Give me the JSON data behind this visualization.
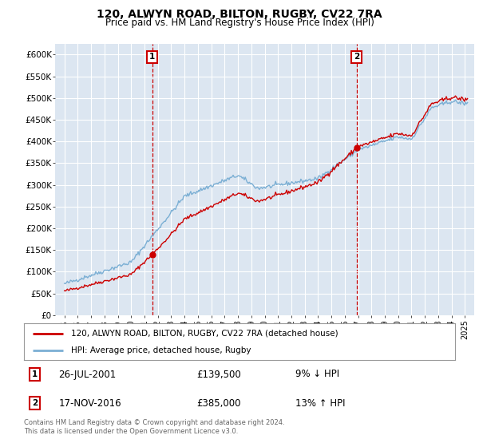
{
  "title1": "120, ALWYN ROAD, BILTON, RUGBY, CV22 7RA",
  "title2": "Price paid vs. HM Land Registry's House Price Index (HPI)",
  "ylim": [
    0,
    620000
  ],
  "background_color": "#dce6f1",
  "line1_color": "#cc0000",
  "line2_color": "#7bafd4",
  "sale1_price": 139500,
  "sale1_x": 2001.57,
  "sale2_price": 385000,
  "sale2_x": 2016.88,
  "legend1": "120, ALWYN ROAD, BILTON, RUGBY, CV22 7RA (detached house)",
  "legend2": "HPI: Average price, detached house, Rugby",
  "ann1_date": "26-JUL-2001",
  "ann1_price": "£139,500",
  "ann1_pct": "9% ↓ HPI",
  "ann2_date": "17-NOV-2016",
  "ann2_price": "£385,000",
  "ann2_pct": "13% ↑ HPI",
  "footer": "Contains HM Land Registry data © Crown copyright and database right 2024.\nThis data is licensed under the Open Government Licence v3.0."
}
